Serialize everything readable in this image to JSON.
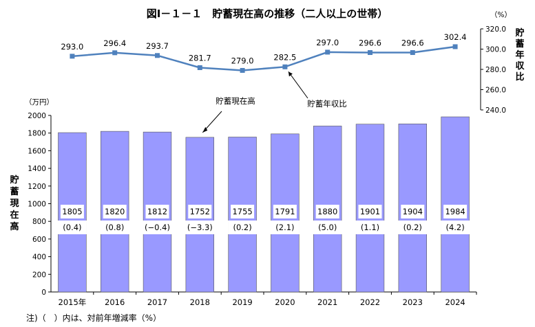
{
  "chart_data": {
    "title": "図Ⅰ－１－１　貯蓄現在高の推移（二人以上の世帯）",
    "categories": [
      "2015年",
      "2016",
      "2017",
      "2018",
      "2019",
      "2020",
      "2021",
      "2022",
      "2023",
      "2024"
    ],
    "bar_series": {
      "name": "貯蓄現在高",
      "type": "bar",
      "values": [
        1805,
        1820,
        1812,
        1752,
        1755,
        1791,
        1880,
        1901,
        1904,
        1984
      ],
      "pct_change_labels": [
        "(0.4)",
        "(0.8)",
        "(−0.4)",
        "(−3.3)",
        "(0.2)",
        "(2.1)",
        "(5.0)",
        "(1.1)",
        "(0.2)",
        "(4.2)"
      ],
      "color": "#9999ff",
      "ylim": [
        0,
        2000
      ],
      "yticks": [
        0,
        200,
        400,
        600,
        800,
        1000,
        1200,
        1400,
        1600,
        1800,
        2000
      ],
      "unit": "（万円）",
      "ylabel": "貯蓄現在高"
    },
    "line_series": {
      "name": "貯蓄年収比",
      "type": "line",
      "values": [
        293.0,
        296.4,
        293.7,
        281.7,
        279.0,
        282.5,
        297.0,
        296.6,
        296.6,
        302.4
      ],
      "value_labels": [
        "293.0",
        "296.4",
        "293.7",
        "281.7",
        "279.0",
        "282.5",
        "297.0",
        "296.6",
        "296.6",
        "302.4"
      ],
      "color": "#4f81bd",
      "ylim": [
        240,
        320
      ],
      "yticks": [
        "240.0",
        "260.0",
        "280.0",
        "300.0",
        "320.0"
      ],
      "unit": "（%）",
      "ylabel": "貯蓄年収比"
    },
    "note": "注)（　）内は、対前年増減率（%）"
  }
}
